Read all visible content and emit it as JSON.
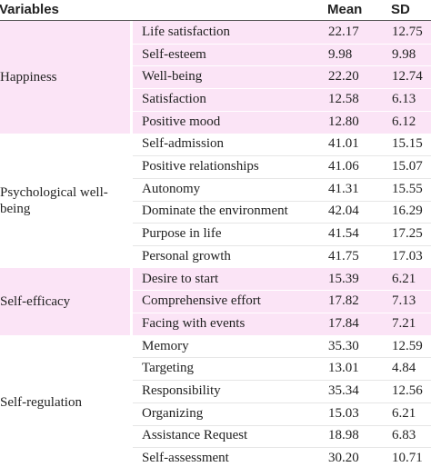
{
  "table": {
    "header": [
      "Variables",
      "Mean",
      "SD"
    ],
    "groups": [
      {
        "name": "Happiness",
        "rows": [
          [
            "Life satisfaction",
            "22.17",
            "12.75"
          ],
          [
            "Self-esteem",
            "9.98",
            "9.98"
          ],
          [
            "Well-being",
            "22.20",
            "12.74"
          ],
          [
            "Satisfaction",
            "12.58",
            "6.13"
          ],
          [
            "Positive mood",
            "12.80",
            "6.12"
          ]
        ]
      },
      {
        "name": "Psychological well-being",
        "rows": [
          [
            "Self-admission",
            "41.01",
            "15.15"
          ],
          [
            "Positive relationships",
            "41.06",
            "15.07"
          ],
          [
            "Autonomy",
            "41.31",
            "15.55"
          ],
          [
            "Dominate the environment",
            "42.04",
            "16.29"
          ],
          [
            "Purpose in life",
            "41.54",
            "17.25"
          ],
          [
            "Personal growth",
            "41.75",
            "17.03"
          ]
        ]
      },
      {
        "name": "Self-efficacy",
        "rows": [
          [
            "Desire to start",
            "15.39",
            "6.21"
          ],
          [
            "Comprehensive effort",
            "17.82",
            "7.13"
          ],
          [
            "Facing with events",
            "17.84",
            "7.21"
          ]
        ]
      },
      {
        "name": "Self-regulation",
        "rows": [
          [
            "Memory",
            "35.30",
            "12.59"
          ],
          [
            "Targeting",
            "13.01",
            "4.84"
          ],
          [
            "Responsibility",
            "35.34",
            "12.56"
          ],
          [
            "Organizing",
            "15.03",
            "6.21"
          ],
          [
            "Assistance Request",
            "18.98",
            "6.83"
          ],
          [
            "Self-assessment",
            "30.20",
            "10.71"
          ]
        ]
      }
    ]
  }
}
